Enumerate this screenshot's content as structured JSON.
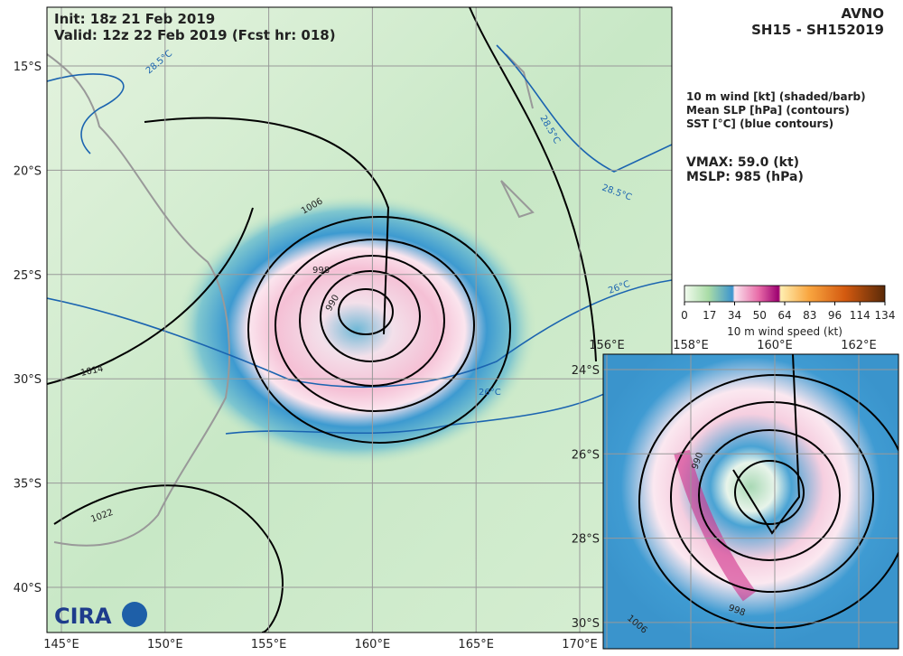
{
  "header": {
    "init": "Init:   18z 21 Feb 2019",
    "valid": "Valid: 12z 22 Feb 2019 (Fcst hr: 018)",
    "model": "AVNO",
    "storm": "SH15 - SH152019"
  },
  "legend": {
    "lines": [
      "10 m wind [kt] (shaded/barb)",
      "Mean SLP [hPa] (contours)",
      "SST [°C] (blue contours)"
    ],
    "vmax": "VMAX:  59.0 (kt)",
    "mslp": "MSLP:  985 (hPa)"
  },
  "colorbar": {
    "ticks": [
      "0",
      "17",
      "34",
      "50",
      "64",
      "83",
      "96",
      "114",
      "134"
    ],
    "label": "10 m wind speed (kt)"
  },
  "map": {
    "lat_labels": [
      "15°S",
      "20°S",
      "25°S",
      "30°S",
      "35°S",
      "40°S"
    ],
    "lon_labels": [
      "145°E",
      "150°E",
      "155°E",
      "160°E",
      "165°E",
      "170°E"
    ],
    "slp_labels": [
      "1006",
      "998",
      "990",
      "1014",
      "1022"
    ],
    "sst_labels": [
      "28.5°C",
      "28.5°C",
      "28.5°C",
      "26°C",
      "26°C"
    ]
  },
  "inset": {
    "lon_labels": [
      "156°E",
      "158°E",
      "160°E",
      "162°E"
    ],
    "lat_labels": [
      "24°S",
      "26°S",
      "28°S",
      "30°S"
    ],
    "slp_labels": [
      "990",
      "998",
      "1006"
    ]
  },
  "logo": "CIRA"
}
